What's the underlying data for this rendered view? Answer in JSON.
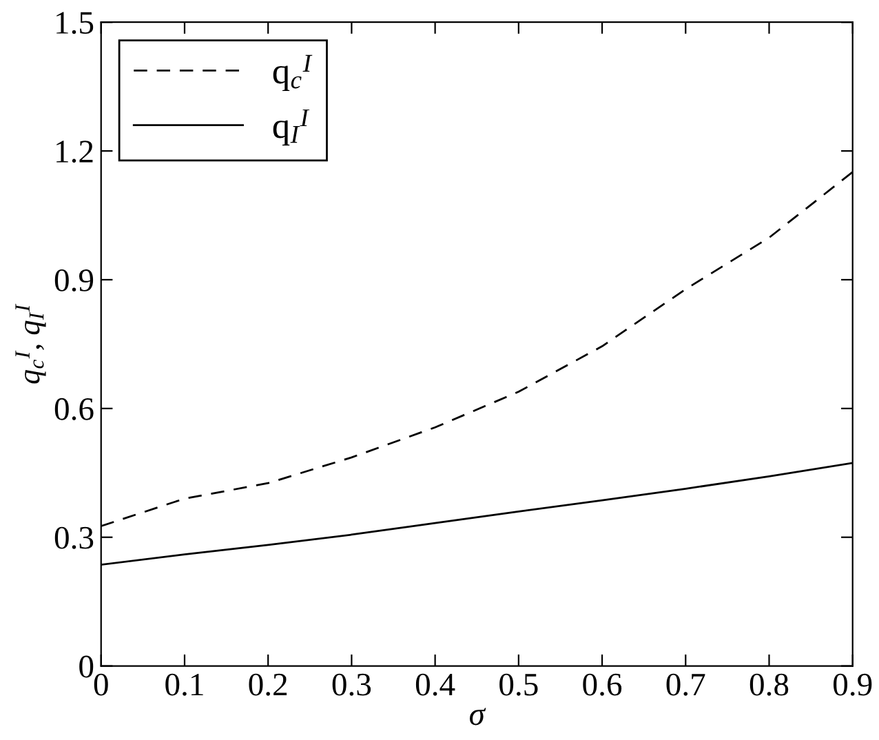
{
  "chart_data": {
    "type": "line",
    "xlabel": "σ",
    "ylabel": "q$_{c}$$^{I}$, q$_{I}$$^{I}$",
    "x": [
      0,
      0.1,
      0.2,
      0.3,
      0.4,
      0.5,
      0.6,
      0.7,
      0.8,
      0.9
    ],
    "series": [
      {
        "name": "q$_{c}$$^{I}$",
        "color": "#000000",
        "line_style": "dashed",
        "values": [
          0.326,
          0.39,
          0.426,
          0.486,
          0.556,
          0.639,
          0.745,
          0.878,
          0.998,
          1.151
        ]
      },
      {
        "name": "q$_{I}$$^{I}$",
        "color": "#000000",
        "line_style": "solid",
        "values": [
          0.236,
          0.26,
          0.282,
          0.306,
          0.333,
          0.36,
          0.386,
          0.413,
          0.442,
          0.473
        ]
      }
    ],
    "xlim": [
      0,
      0.9
    ],
    "xticks": [
      0,
      0.1,
      0.2,
      0.3,
      0.4,
      0.5,
      0.6,
      0.7,
      0.8,
      0.9
    ],
    "ylim": [
      0,
      1.5
    ],
    "yticks": [
      0,
      0.3,
      0.6,
      0.9,
      1.2,
      1.5
    ],
    "grid": false,
    "legend": "top left",
    "marker": "none"
  }
}
